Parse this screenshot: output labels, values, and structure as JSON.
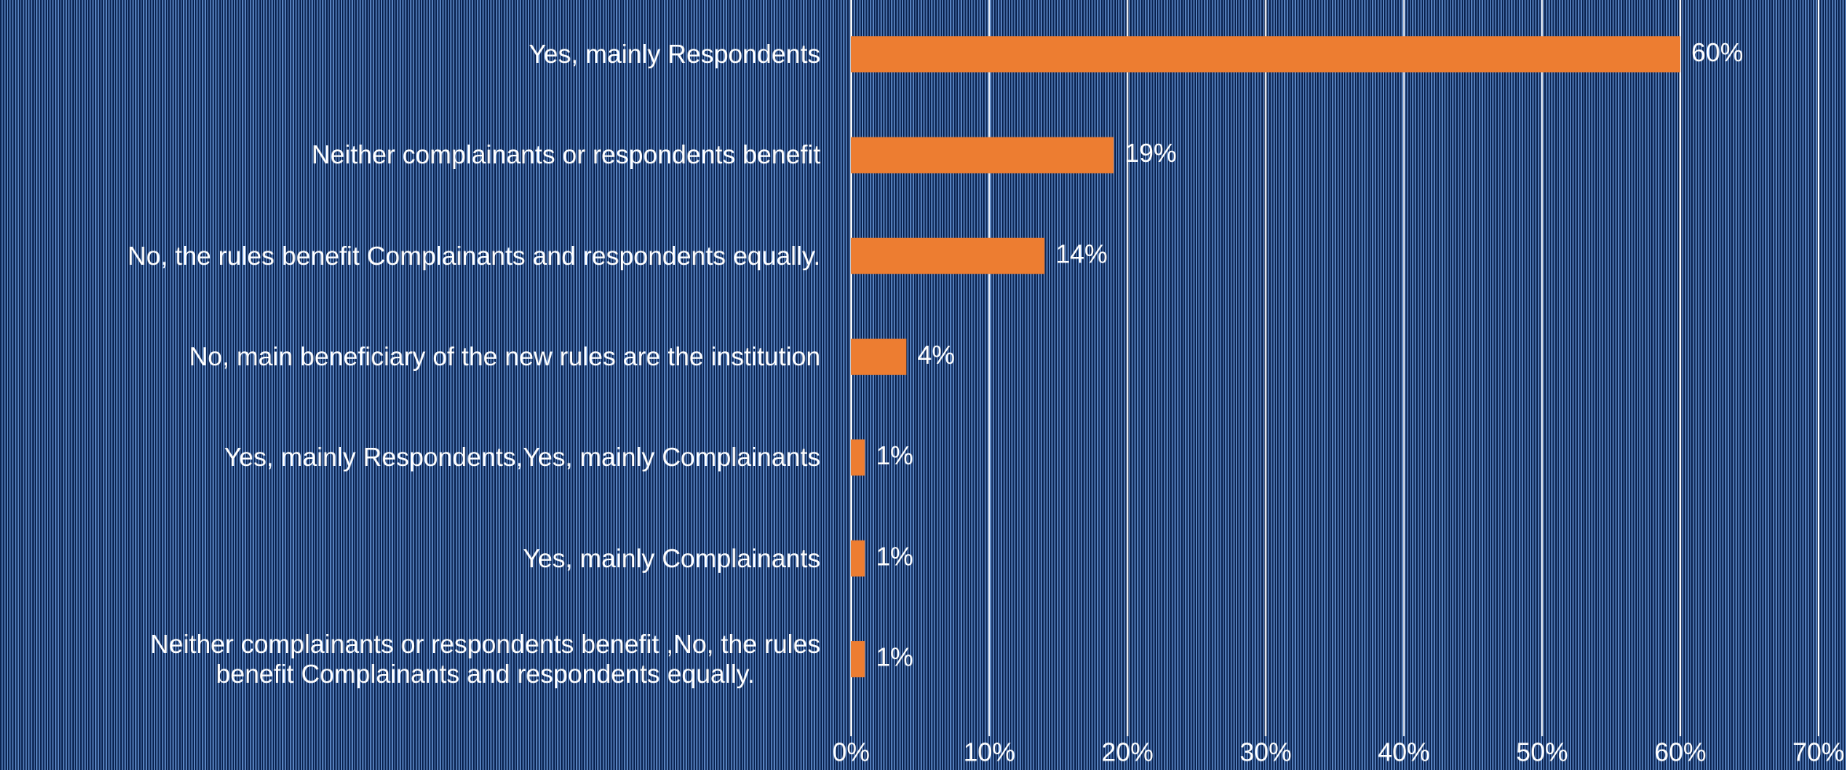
{
  "chart_data": {
    "type": "bar",
    "orientation": "horizontal",
    "categories": [
      "Yes, mainly Respondents",
      "Neither complainants or respondents benefit",
      "No, the rules benefit Complainants and respondents equally.",
      "No, main beneficiary of the new rules are the institution",
      "Yes, mainly Respondents,Yes, mainly Complainants",
      "Yes, mainly Complainants",
      "Neither complainants or respondents benefit ,No, the rules\nbenefit Complainants and respondents equally."
    ],
    "values": [
      60,
      19,
      14,
      4,
      1,
      1,
      1
    ],
    "value_labels": [
      "60%",
      "19%",
      "14%",
      "4%",
      "1%",
      "1%",
      "1%"
    ],
    "color": "#ed7d31",
    "xlim": [
      0,
      70
    ],
    "xticks": [
      {
        "value": 0,
        "label": "0%"
      },
      {
        "value": 10,
        "label": "10%"
      },
      {
        "value": 20,
        "label": "20%"
      },
      {
        "value": 30,
        "label": "30%"
      },
      {
        "value": 40,
        "label": "40%"
      },
      {
        "value": 50,
        "label": "50%"
      },
      {
        "value": 60,
        "label": "60%"
      },
      {
        "value": 70,
        "label": "70%"
      }
    ],
    "grid": true
  }
}
